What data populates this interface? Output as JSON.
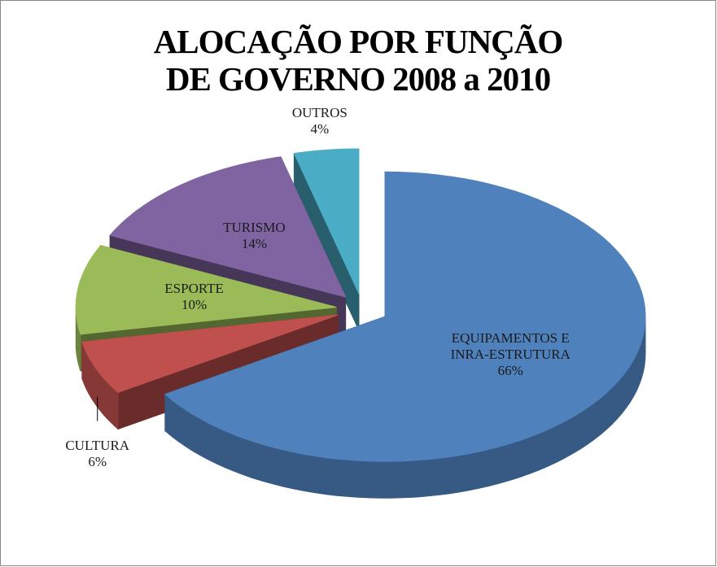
{
  "chart_data": {
    "type": "pie3d",
    "title": "ALOCAÇÃO POR FUNÇÃO DE GOVERNO 2008 a 2010",
    "categories": [
      "EQUIPAMENTOS E INRA-ESTRUTURA",
      "CULTURA",
      "ESPORTE",
      "TURISMO",
      "OUTROS"
    ],
    "values": [
      66,
      6,
      10,
      14,
      4
    ],
    "value_labels": [
      "66%",
      "6%",
      "10%",
      "14%",
      "4%"
    ],
    "colors": [
      "#4f81bd",
      "#c0504d",
      "#9bbb59",
      "#8064a2",
      "#4bacc6"
    ]
  }
}
